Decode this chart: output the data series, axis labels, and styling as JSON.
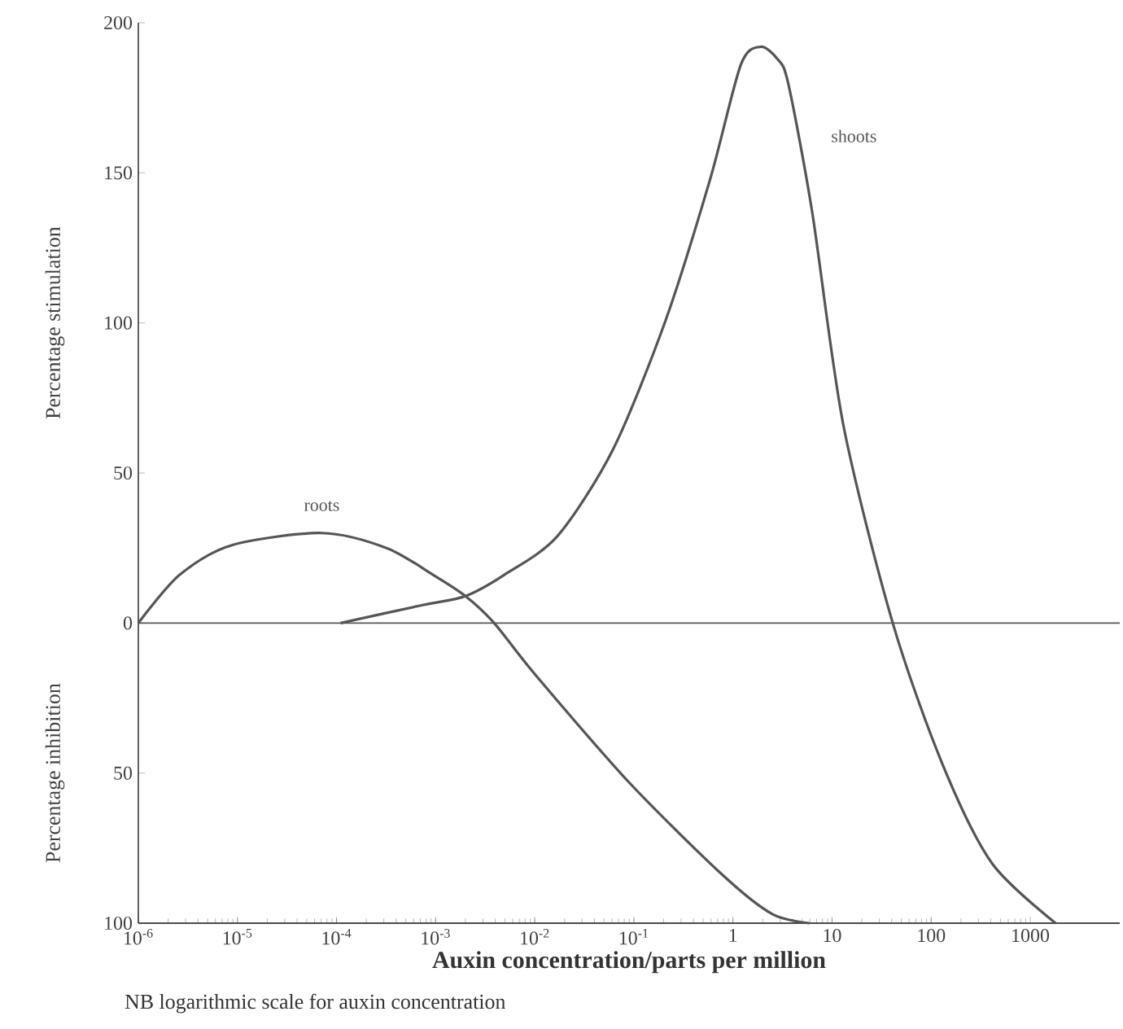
{
  "chart_data": {
    "type": "line",
    "ylabel": "Percentage stimulation",
    "xlabel": "Auxin concentration/parts per million",
    "annotations": [
      "Percentage inhibition",
      "NB logarithmic scale for auxin concentration"
    ],
    "log": "x",
    "grid": false,
    "marker": "none",
    "line_style": "solid",
    "xlim": [
      1e-06,
      8000
    ],
    "ylim": [
      -100,
      200
    ],
    "xticks": [
      {
        "value": 1e-06,
        "label": "10$^{-6}$"
      },
      {
        "value": 1e-05,
        "label": "10$^{-5}$"
      },
      {
        "value": 0.0001,
        "label": "10$^{-4}$"
      },
      {
        "value": 0.001,
        "label": "10$^{-3}$"
      },
      {
        "value": 0.01,
        "label": "10$^{-2}$"
      },
      {
        "value": 0.1,
        "label": "10$^{-1}$"
      },
      1,
      10,
      100,
      1000
    ],
    "yticks": [
      200,
      150,
      100,
      50,
      0,
      {
        "value": -50,
        "label": "50"
      },
      {
        "value": -100,
        "label": "100"
      }
    ],
    "ref_lines": [
      {
        "axis": "y",
        "value": 0,
        "color": "#555555"
      }
    ],
    "series": [
      {
        "name": "roots",
        "color": "#555555",
        "x": [
          1e-06,
          2.6e-06,
          8.9e-06,
          7.1e-05,
          0.00032,
          0.00095,
          0.002,
          0.0039,
          0.01,
          0.089,
          0.79,
          2.5,
          5.9
        ],
        "values": [
          0,
          16,
          26,
          30,
          25,
          16,
          9,
          0,
          -17,
          -53,
          -84,
          -97,
          -100
        ]
      },
      {
        "name": "shoots",
        "color": "#555555",
        "x": [
          0.00011,
          0.00074,
          0.002,
          0.0049,
          0.017,
          0.062,
          0.21,
          0.59,
          1.2,
          1.9,
          2.8,
          3.6,
          6.3,
          13,
          41,
          130,
          410,
          1800
        ],
        "values": [
          0,
          6,
          9,
          16,
          29,
          58,
          101,
          148,
          186,
          192,
          188,
          180,
          137,
          66,
          0,
          -47,
          -80,
          -100
        ]
      }
    ]
  }
}
